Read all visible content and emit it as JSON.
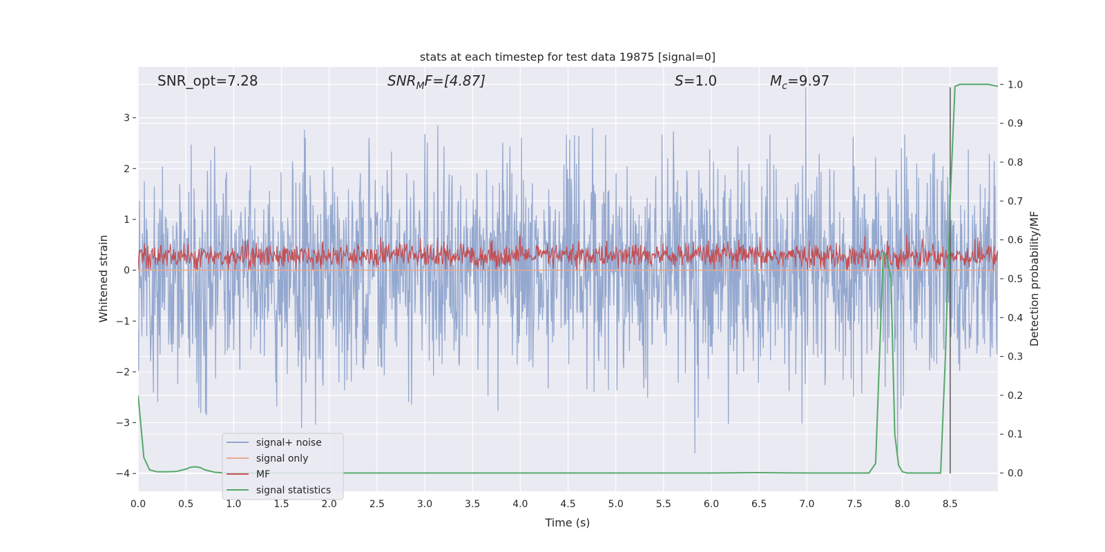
{
  "chart_data": {
    "type": "line",
    "title": "stats at each timestep for test data 19875 [signal=0]",
    "xlabel": "Time (s)",
    "ylabel": "Whitened strain",
    "ylabel_right": "Detection probability/MF",
    "xlim": [
      0,
      9
    ],
    "ylim": [
      -4.35,
      4.0
    ],
    "ylim_right": [
      -0.047,
      1.045
    ],
    "grid": true,
    "legend_position": "lower-left",
    "x_ticks": [
      "0.0",
      "0.5",
      "1.0",
      "1.5",
      "2.0",
      "2.5",
      "3.0",
      "3.5",
      "4.0",
      "4.5",
      "5.0",
      "5.5",
      "6.0",
      "6.5",
      "7.0",
      "7.5",
      "8.0",
      "8.5"
    ],
    "y_ticks": [
      "−4",
      "−3",
      "−2",
      "−1",
      "0",
      "1",
      "2",
      "3"
    ],
    "y_ticks_right": [
      "0.0",
      "0.1",
      "0.2",
      "0.3",
      "0.4",
      "0.5",
      "0.6",
      "0.7",
      "0.8",
      "0.9",
      "1.0"
    ],
    "annotations": {
      "snr_opt": "SNR_opt=7.28",
      "snr_mf_main": "SNR",
      "snr_mf_sub": "M",
      "snr_mf_rest": "F=[4.87]",
      "s_italic": "S",
      "s_rest": "=1.0",
      "mc_main": "M",
      "mc_sub": "c",
      "mc_rest": "=9.97"
    },
    "series": [
      {
        "name": "signal+ noise",
        "color": "#8fa4cc",
        "axis": "left",
        "amplitude_range": [
          -3.6,
          3.6
        ]
      },
      {
        "name": "signal only",
        "color": "#e9a88e",
        "axis": "left",
        "values_approx": 0
      },
      {
        "name": "MF",
        "color": "#c44e52",
        "axis": "left",
        "range": [
          0,
          1.0
        ]
      },
      {
        "name": "signal statistics",
        "color": "#55a868",
        "axis": "right",
        "x": [
          0.0,
          0.06,
          0.12,
          0.2,
          0.3,
          0.4,
          0.5,
          0.55,
          0.6,
          0.65,
          0.7,
          0.8,
          0.9,
          1.0,
          2.0,
          3.0,
          4.0,
          5.0,
          6.0,
          6.5,
          7.0,
          7.5,
          7.65,
          7.72,
          7.76,
          7.8,
          7.84,
          7.88,
          7.92,
          7.96,
          8.0,
          8.05,
          8.1,
          8.2,
          8.3,
          8.4,
          8.45,
          8.5,
          8.55,
          8.6,
          8.65,
          8.7,
          8.8,
          8.9,
          9.0
        ],
        "y": [
          0.2,
          0.04,
          0.008,
          0.003,
          0.003,
          0.004,
          0.01,
          0.015,
          0.016,
          0.014,
          0.008,
          0.002,
          0.0,
          0.0,
          0.0,
          0.0,
          0.0,
          0.0,
          0.0,
          0.001,
          0.0,
          0.0,
          0.0,
          0.025,
          0.3,
          0.57,
          0.55,
          0.5,
          0.1,
          0.02,
          0.003,
          0.0,
          0.0,
          0.0,
          0.0,
          0.0,
          0.3,
          0.7,
          0.995,
          1.0,
          1.0,
          1.0,
          1.0,
          1.0,
          0.995
        ]
      },
      {
        "name": "vertical marker",
        "color": "#555555",
        "axis": "left",
        "x": 8.5,
        "y_range": [
          -4.0,
          3.6
        ]
      }
    ]
  }
}
